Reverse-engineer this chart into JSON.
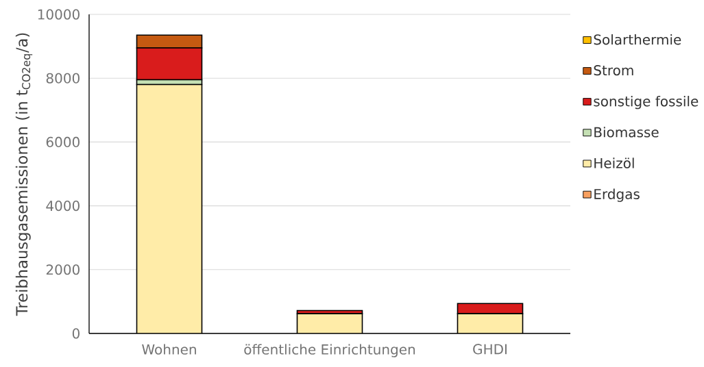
{
  "chart_data": {
    "type": "bar",
    "stacked": true,
    "ylabel": "Treibhausgasemissionen (in t$_{CO2eq}$/a)",
    "categories": [
      "Wohnen",
      "öffentliche Einrichtungen",
      "GHDI"
    ],
    "series": [
      {
        "name": "Erdgas",
        "color": "#f8a05f",
        "values": [
          0,
          0,
          0
        ]
      },
      {
        "name": "Heizöl",
        "color": "#ffeca8",
        "values": [
          7800,
          620,
          620
        ]
      },
      {
        "name": "Biomasse",
        "color": "#c5e0b4",
        "values": [
          150,
          0,
          0
        ]
      },
      {
        "name": "sonstige fossile",
        "color": "#d91c1c",
        "values": [
          1000,
          100,
          320
        ]
      },
      {
        "name": "Strom",
        "color": "#c55a11",
        "values": [
          400,
          0,
          0
        ]
      },
      {
        "name": "Solarthermie",
        "color": "#ffc000",
        "values": [
          0,
          0,
          0
        ]
      }
    ],
    "ylim": [
      0,
      10000
    ],
    "yticks": [
      0,
      2000,
      4000,
      6000,
      8000,
      10000
    ],
    "grid": "y",
    "legend": "right"
  }
}
